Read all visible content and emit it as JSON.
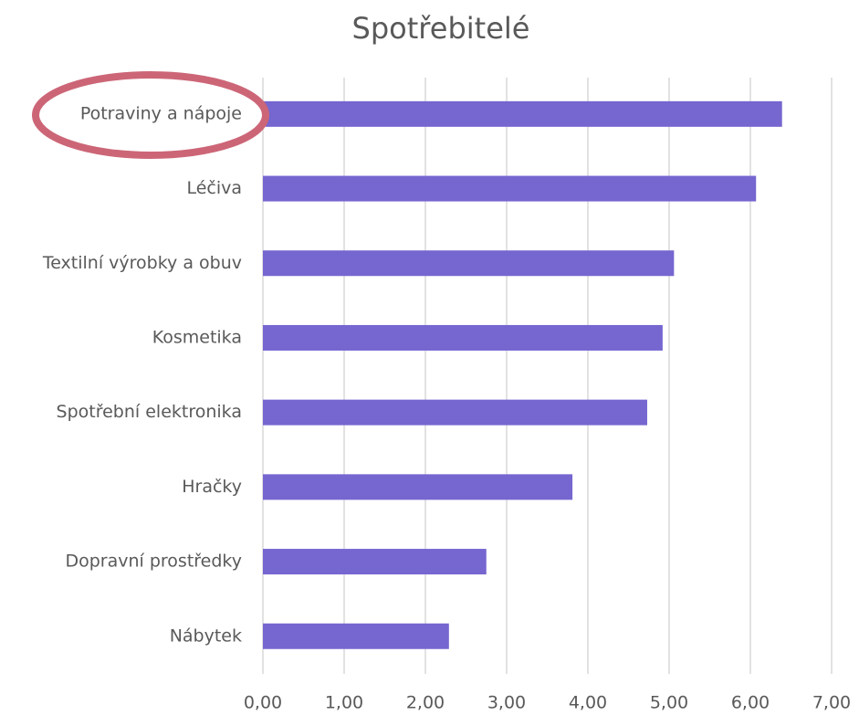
{
  "chart_data": {
    "type": "barh",
    "title": "Spotřebitelé",
    "categories": [
      "Potraviny a nápoje",
      "Léčiva",
      "Textilní výrobky a obuv",
      "Kosmetika",
      "Spotřební elektronika",
      "Hračky",
      "Dopravní prostředky",
      "Nábytek"
    ],
    "values": [
      6.39,
      6.07,
      5.06,
      4.92,
      4.73,
      3.81,
      2.75,
      2.29
    ],
    "color": "#7566d0",
    "xlim": [
      0,
      7
    ],
    "xticks": [
      {
        "value": 0,
        "label": "0,00"
      },
      {
        "value": 1,
        "label": "1,00"
      },
      {
        "value": 2,
        "label": "2,00"
      },
      {
        "value": 3,
        "label": "3,00"
      },
      {
        "value": 4,
        "label": "4,00"
      },
      {
        "value": 5,
        "label": "5,00"
      },
      {
        "value": 6,
        "label": "6,00"
      },
      {
        "value": 7,
        "label": "7,00"
      }
    ],
    "grid": true
  }
}
